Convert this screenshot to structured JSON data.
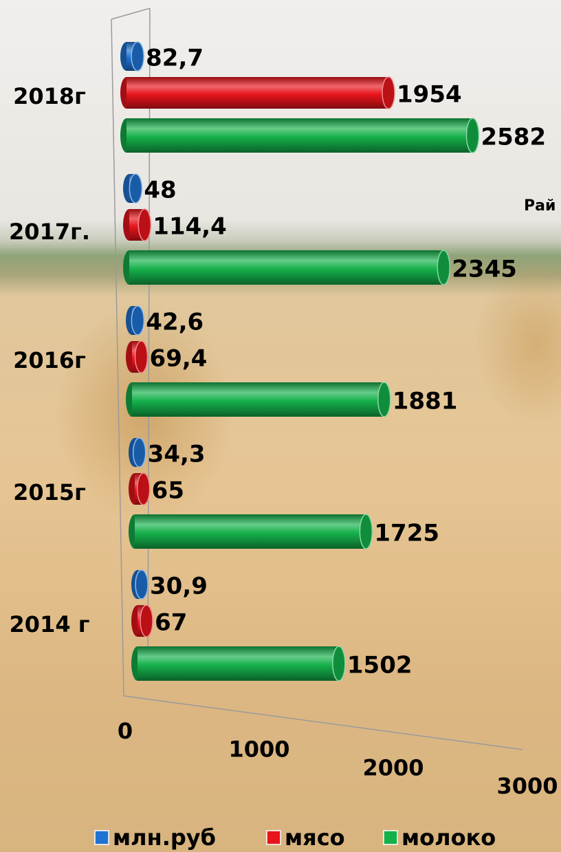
{
  "chart_data": {
    "type": "bar",
    "orientation": "horizontal",
    "categories": [
      "2014 г",
      "2015г",
      "2016г",
      "2017г.",
      "2018г"
    ],
    "series": [
      {
        "name": "млн.руб",
        "color": "#1e73d2",
        "values": [
          30.9,
          34.3,
          42.6,
          48,
          82.7
        ],
        "value_labels": [
          "30,9",
          "34,3",
          "42,6",
          "48",
          "82,7"
        ]
      },
      {
        "name": "мясо",
        "color": "#e8141c",
        "values": [
          67,
          65,
          69.4,
          114.4,
          1954
        ],
        "value_labels": [
          "67",
          "65",
          "69,4",
          "114,4",
          "1954"
        ]
      },
      {
        "name": "молоко",
        "color": "#14b04a",
        "values": [
          1502,
          1725,
          1881,
          2345,
          2582
        ]
      }
    ],
    "xlim": [
      0,
      3000
    ],
    "xticks": [
      0,
      1000,
      2000,
      3000
    ],
    "annotation": "Рай",
    "legend": "bottom"
  }
}
